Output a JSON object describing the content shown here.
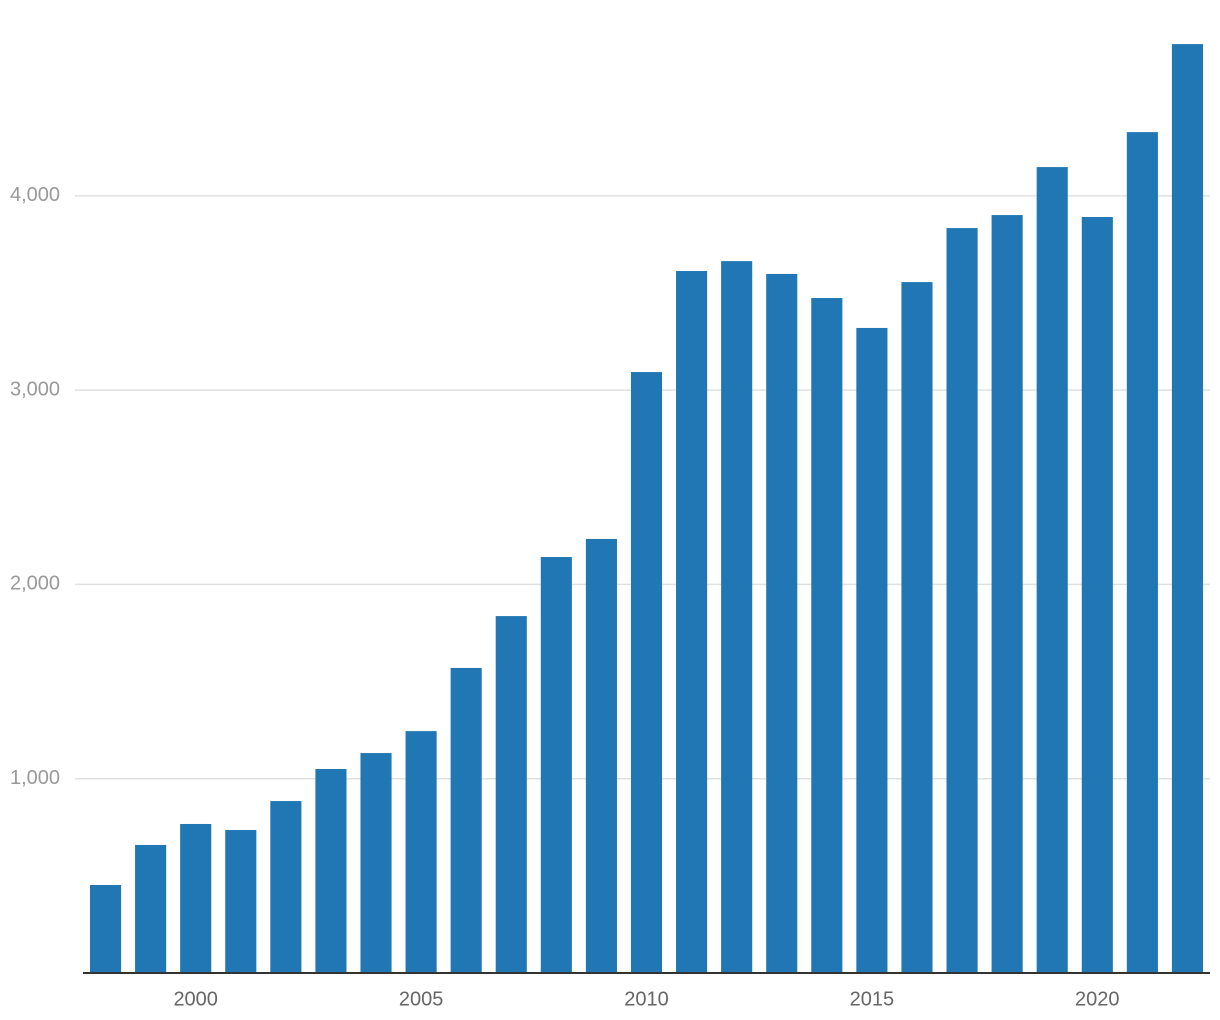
{
  "chart_data": {
    "type": "bar",
    "x": [
      1998,
      1999,
      2000,
      2001,
      2002,
      2003,
      2004,
      2005,
      2006,
      2007,
      2008,
      2009,
      2010,
      2011,
      2012,
      2013,
      2014,
      2015,
      2016,
      2017,
      2018,
      2019,
      2020,
      2021,
      2022
    ],
    "values": [
      453,
      659,
      767,
      736,
      885,
      1050,
      1132,
      1245,
      1570,
      1837,
      2141,
      2234,
      3093,
      3613,
      3664,
      3598,
      3474,
      3320,
      3556,
      3834,
      3901,
      4148,
      3891,
      4328,
      4781
    ],
    "color": "#2077b4",
    "xlim": [
      1997.5,
      2022.5
    ],
    "xticks": [
      2000,
      2005,
      2010,
      2015,
      2020
    ],
    "ylim": [
      0,
      4800
    ],
    "yticks": [
      {
        "value": 1000,
        "label": "1,000"
      },
      {
        "value": 2000,
        "label": "2,000"
      },
      {
        "value": 3000,
        "label": "3,000"
      },
      {
        "value": 4000,
        "label": "4,000"
      }
    ],
    "grid": true
  }
}
